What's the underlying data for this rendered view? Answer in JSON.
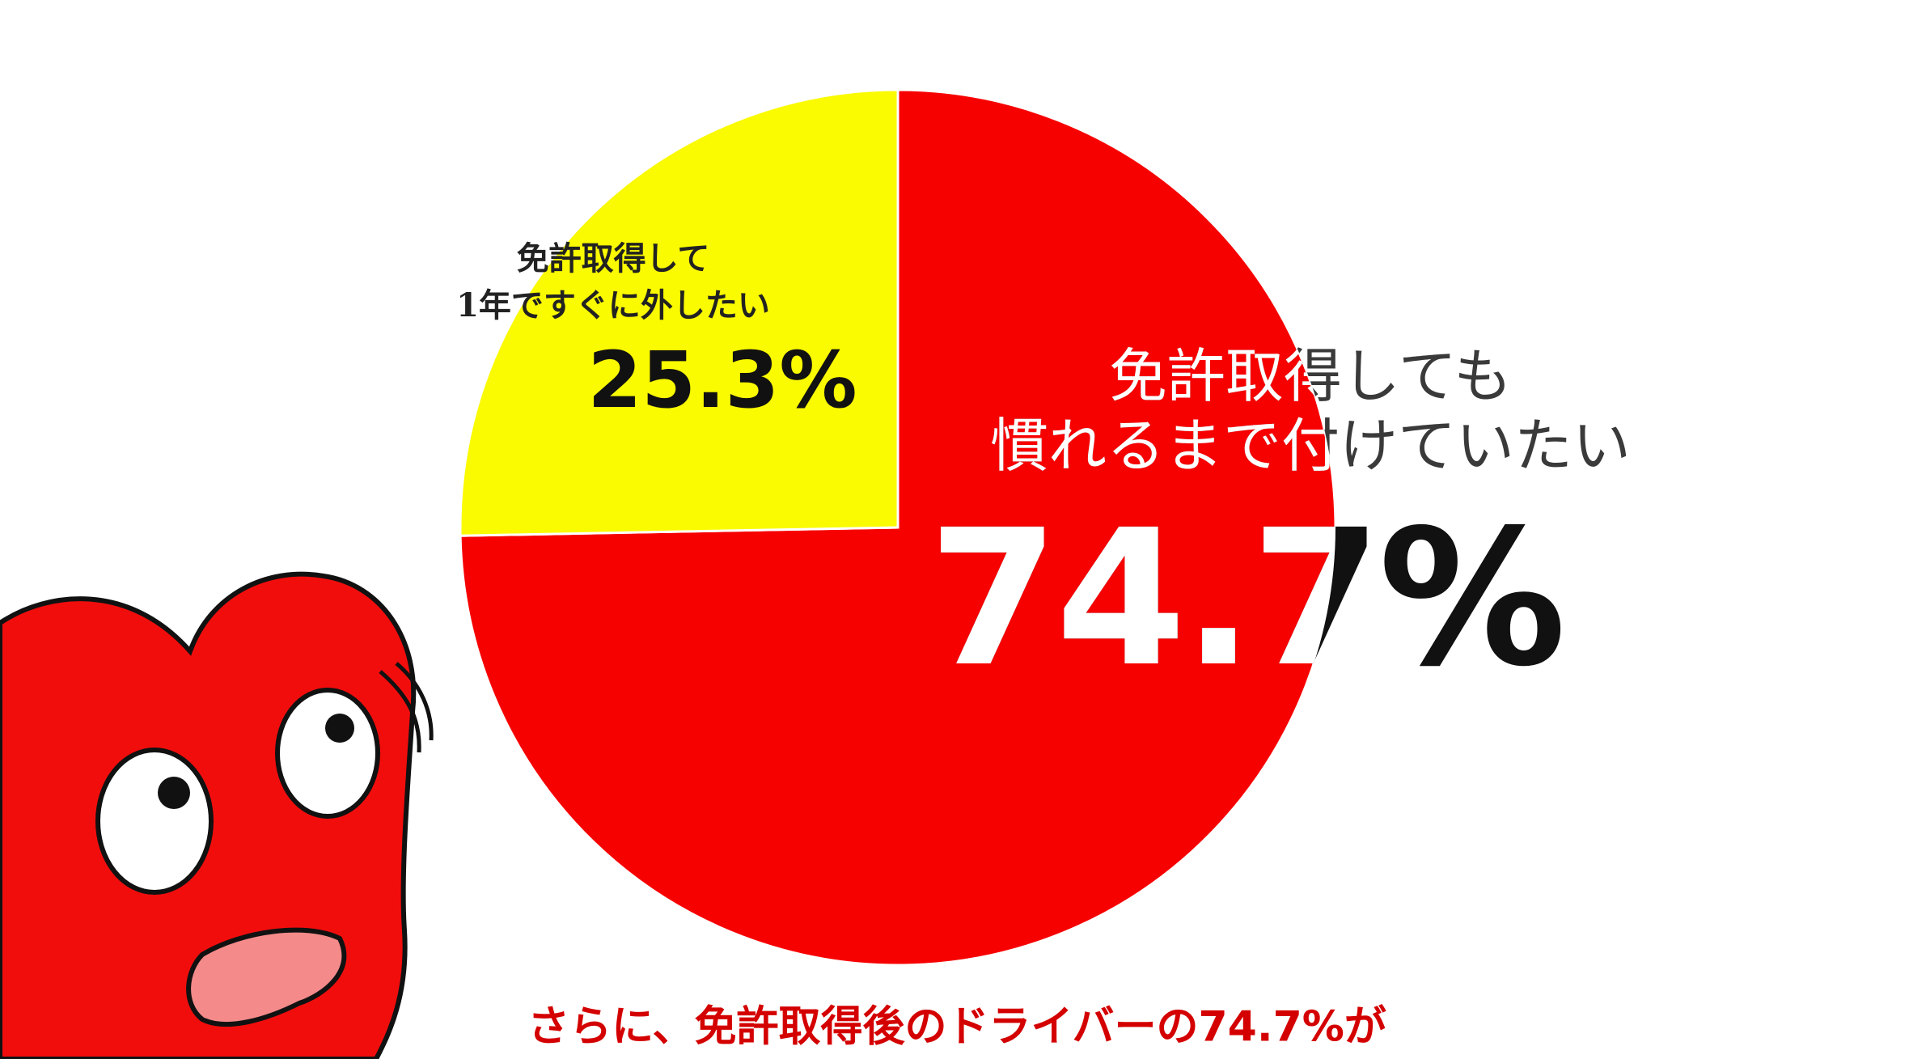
{
  "chart_data": {
    "type": "pie",
    "categories": [
      "免許取得しても\n慣れるまで付けていたい",
      "免許取得して\n1年ですぐに外したい"
    ],
    "values": [
      74.7,
      25.3
    ],
    "value_labels": [
      "74.7%",
      "25.3%"
    ],
    "colors": [
      "#f70000",
      "#fafa00"
    ],
    "caption": "さらに、免許取得後のドライバーの74.7%が"
  }
}
